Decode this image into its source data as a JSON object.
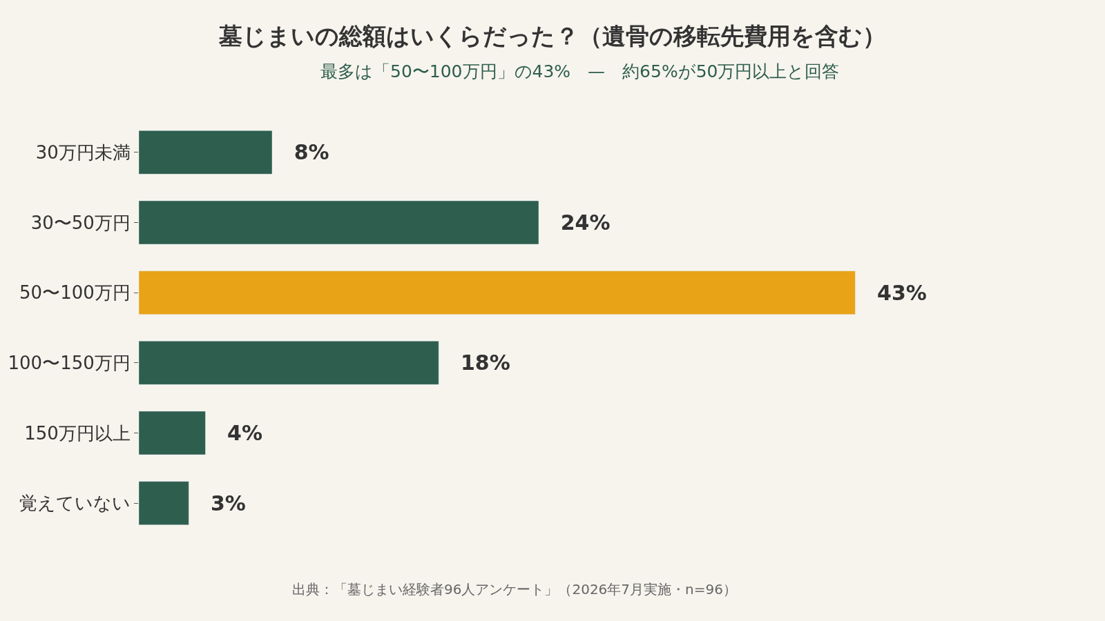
{
  "chart_data": {
    "type": "bar",
    "orientation": "horizontal",
    "title": "墓じまいの総額はいくらだった？（遺骨の移転先費用を含む）",
    "subtitle": "最多は「50〜100万円」の43%　—　約65%が50万円以上と回答",
    "categories": [
      "30万円未満",
      "30〜50万円",
      "50〜100万円",
      "100〜150万円",
      "150万円以上",
      "覚えていない"
    ],
    "values": [
      8,
      24,
      43,
      18,
      4,
      3
    ],
    "colors": [
      "#2e5e4e",
      "#2e5e4e",
      "#e8a317",
      "#2e5e4e",
      "#2e5e4e",
      "#2e5e4e"
    ],
    "value_labels": [
      "8%",
      "24%",
      "43%",
      "18%",
      "4%",
      "3%"
    ],
    "annotations": [
      "出典：「墓じまい経験者96人アンケート」（2026年7月実施・n=96）"
    ],
    "grid": false
  }
}
